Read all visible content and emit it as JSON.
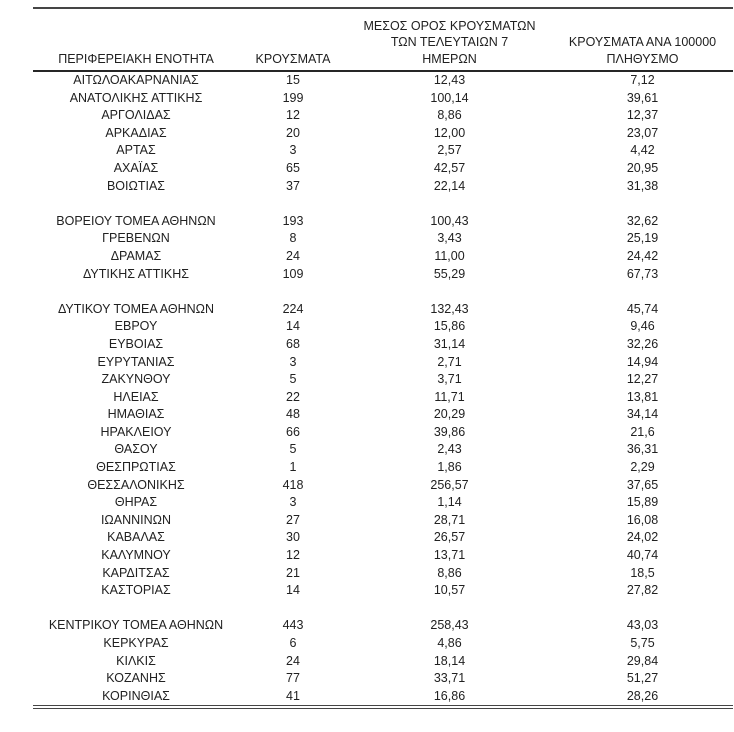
{
  "colors": {
    "background": "#ffffff",
    "text": "#212121",
    "rule": "#454545",
    "header_rule": "#262626"
  },
  "chart_data": {
    "type": "table",
    "decimal_separator": ",",
    "header": {
      "col1": [
        "ΠΕΡΙΦΕΡΕΙΑΚΗ ΕΝΟΤΗΤΑ"
      ],
      "col2": [
        "ΚΡΟΥΣΜΑΤΑ"
      ],
      "col3": [
        "ΜΕΣΟΣ ΟΡΟΣ ΚΡΟΥΣΜΑΤΩΝ",
        "ΤΩΝ ΤΕΛΕΥΤΑΙΩΝ 7",
        "ΗΜΕΡΩΝ"
      ],
      "col4": [
        "ΚΡΟΥΣΜΑΤΑ ΑΝΑ 100000",
        "ΠΛΗΘΥΣΜΟ"
      ]
    },
    "rows": [
      {
        "region": "ΑΙΤΩΛΟΑΚΑΡΝΑΝΙΑΣ",
        "cases": "15",
        "avg7": "12,43",
        "per100k": "7,12"
      },
      {
        "region": "ΑΝΑΤΟΛΙΚΗΣ ΑΤΤΙΚΗΣ",
        "cases": "199",
        "avg7": "100,14",
        "per100k": "39,61"
      },
      {
        "region": "ΑΡΓΟΛΙΔΑΣ",
        "cases": "12",
        "avg7": "8,86",
        "per100k": "12,37"
      },
      {
        "region": "ΑΡΚΑΔΙΑΣ",
        "cases": "20",
        "avg7": "12,00",
        "per100k": "23,07"
      },
      {
        "region": "ΑΡΤΑΣ",
        "cases": "3",
        "avg7": "2,57",
        "per100k": "4,42"
      },
      {
        "region": "ΑΧΑΪΑΣ",
        "cases": "65",
        "avg7": "42,57",
        "per100k": "20,95"
      },
      {
        "region": "ΒΟΙΩΤΙΑΣ",
        "cases": "37",
        "avg7": "22,14",
        "per100k": "31,38"
      },
      {
        "spacer": true
      },
      {
        "region": "ΒΟΡΕΙΟΥ ΤΟΜΕΑ ΑΘΗΝΩΝ",
        "cases": "193",
        "avg7": "100,43",
        "per100k": "32,62"
      },
      {
        "region": "ΓΡΕΒΕΝΩΝ",
        "cases": "8",
        "avg7": "3,43",
        "per100k": "25,19"
      },
      {
        "region": "ΔΡΑΜΑΣ",
        "cases": "24",
        "avg7": "11,00",
        "per100k": "24,42"
      },
      {
        "region": "ΔΥΤΙΚΗΣ ΑΤΤΙΚΗΣ",
        "cases": "109",
        "avg7": "55,29",
        "per100k": "67,73"
      },
      {
        "spacer": true
      },
      {
        "region": "ΔΥΤΙΚΟΥ ΤΟΜΕΑ ΑΘΗΝΩΝ",
        "cases": "224",
        "avg7": "132,43",
        "per100k": "45,74"
      },
      {
        "region": "ΕΒΡΟΥ",
        "cases": "14",
        "avg7": "15,86",
        "per100k": "9,46"
      },
      {
        "region": "ΕΥΒΟΙΑΣ",
        "cases": "68",
        "avg7": "31,14",
        "per100k": "32,26"
      },
      {
        "region": "ΕΥΡΥΤΑΝΙΑΣ",
        "cases": "3",
        "avg7": "2,71",
        "per100k": "14,94"
      },
      {
        "region": "ΖΑΚΥΝΘΟΥ",
        "cases": "5",
        "avg7": "3,71",
        "per100k": "12,27"
      },
      {
        "region": "ΗΛΕΙΑΣ",
        "cases": "22",
        "avg7": "11,71",
        "per100k": "13,81"
      },
      {
        "region": "ΗΜΑΘΙΑΣ",
        "cases": "48",
        "avg7": "20,29",
        "per100k": "34,14"
      },
      {
        "region": "ΗΡΑΚΛΕΙΟΥ",
        "cases": "66",
        "avg7": "39,86",
        "per100k": "21,6"
      },
      {
        "region": "ΘΑΣΟΥ",
        "cases": "5",
        "avg7": "2,43",
        "per100k": "36,31"
      },
      {
        "region": "ΘΕΣΠΡΩΤΙΑΣ",
        "cases": "1",
        "avg7": "1,86",
        "per100k": "2,29"
      },
      {
        "region": "ΘΕΣΣΑΛΟΝΙΚΗΣ",
        "cases": "418",
        "avg7": "256,57",
        "per100k": "37,65"
      },
      {
        "region": "ΘΗΡΑΣ",
        "cases": "3",
        "avg7": "1,14",
        "per100k": "15,89"
      },
      {
        "region": "ΙΩΑΝΝΙΝΩΝ",
        "cases": "27",
        "avg7": "28,71",
        "per100k": "16,08"
      },
      {
        "region": "ΚΑΒΑΛΑΣ",
        "cases": "30",
        "avg7": "26,57",
        "per100k": "24,02"
      },
      {
        "region": "ΚΑΛΥΜΝΟΥ",
        "cases": "12",
        "avg7": "13,71",
        "per100k": "40,74"
      },
      {
        "region": "ΚΑΡΔΙΤΣΑΣ",
        "cases": "21",
        "avg7": "8,86",
        "per100k": "18,5"
      },
      {
        "region": "ΚΑΣΤΟΡΙΑΣ",
        "cases": "14",
        "avg7": "10,57",
        "per100k": "27,82"
      },
      {
        "spacer": true
      },
      {
        "region": "ΚΕΝΤΡΙΚΟΥ ΤΟΜΕΑ ΑΘΗΝΩΝ",
        "cases": "443",
        "avg7": "258,43",
        "per100k": "43,03"
      },
      {
        "region": "ΚΕΡΚΥΡΑΣ",
        "cases": "6",
        "avg7": "4,86",
        "per100k": "5,75"
      },
      {
        "region": "ΚΙΛΚΙΣ",
        "cases": "24",
        "avg7": "18,14",
        "per100k": "29,84"
      },
      {
        "region": "ΚΟΖΑΝΗΣ",
        "cases": "77",
        "avg7": "33,71",
        "per100k": "51,27"
      },
      {
        "region": "ΚΟΡΙΝΘΙΑΣ",
        "cases": "41",
        "avg7": "16,86",
        "per100k": "28,26"
      }
    ]
  }
}
